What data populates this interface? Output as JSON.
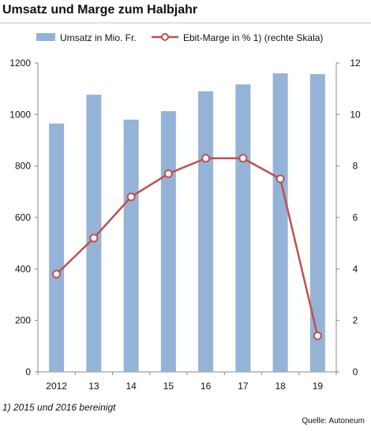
{
  "title": "Umsatz und Marge zum Halbjahr",
  "footnote": "1) 2015 und 2016 bereinigt",
  "source": "Quelle: Autoneum",
  "colors": {
    "bar": "#95b3d7",
    "line": "#c0504d",
    "marker_fill": "#ffffff",
    "title_rule": "#c0c0c0"
  },
  "chart_data": {
    "type": "bar",
    "combo": "bar-line-dual-axis",
    "categories": [
      "2012",
      "13",
      "14",
      "15",
      "16",
      "17",
      "18",
      "19"
    ],
    "series": [
      {
        "name": "Umsatz in Mio. Fr.",
        "type": "bar",
        "axis": "left",
        "values": [
          965,
          1077,
          980,
          1013,
          1090,
          1117,
          1160,
          1157
        ]
      },
      {
        "name": "Ebit-Marge in % 1) (rechte Skala)",
        "type": "line",
        "axis": "right",
        "values": [
          3.8,
          5.2,
          6.8,
          7.7,
          8.3,
          8.3,
          7.5,
          1.4
        ]
      }
    ],
    "y_left": {
      "min": 0,
      "max": 1200,
      "ticks": [
        "0",
        "200",
        "400",
        "600",
        "800",
        "1000",
        "1200"
      ]
    },
    "y_right": {
      "min": 0,
      "max": 12,
      "ticks": [
        "0",
        "2",
        "4",
        "6",
        "8",
        "10",
        "12"
      ]
    },
    "legend_position": "top",
    "grid": false
  }
}
